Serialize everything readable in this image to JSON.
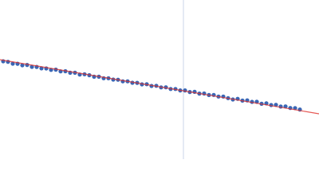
{
  "chart_data": {
    "type": "scatter",
    "xlim": [
      0,
      400
    ],
    "ylim": [
      0,
      200
    ],
    "x": [
      4,
      10,
      16,
      22,
      28,
      34,
      40,
      46,
      52,
      58,
      64,
      70,
      76,
      82,
      88,
      94,
      100,
      106,
      112,
      118,
      124,
      130,
      136,
      142,
      148,
      154,
      160,
      166,
      172,
      178,
      184,
      190,
      196,
      202,
      208,
      214,
      220,
      226,
      232,
      238,
      244,
      250,
      256,
      262,
      268,
      274,
      280,
      286,
      292,
      298,
      304,
      310,
      316,
      322,
      328,
      334,
      340,
      346,
      352,
      358,
      364,
      370,
      376
    ],
    "series": [
      {
        "color": "#3a66b5",
        "values": [
          123.0,
          122.3,
          120.0,
          119.9,
          118.0,
          118.4,
          116.0,
          115.9,
          114.1,
          114.0,
          112.2,
          112.5,
          110.3,
          110.5,
          108.6,
          108.6,
          106.3,
          106.7,
          105.5,
          103.6,
          103.6,
          101.7,
          101.7,
          100.0,
          99.8,
          97.8,
          97.8,
          96.0,
          95.9,
          94.0,
          94.2,
          92.0,
          92.2,
          90.2,
          90.3,
          88.2,
          88.2,
          86.4,
          86.4,
          84.4,
          84.6,
          82.4,
          82.5,
          80.6,
          80.7,
          78.7,
          78.7,
          76.7,
          75.0,
          75.8,
          73.6,
          73.9,
          72.0,
          72.1,
          69.6,
          70.1,
          68.0,
          68.3,
          66.1,
          66.3,
          64.3,
          64.2,
          62.4
        ]
      },
      {
        "color": "#e0302a",
        "x": [
          0,
          400
        ],
        "values": [
          125,
          57
        ]
      }
    ],
    "vline_x": 230,
    "vline_color": "#cbd6ea"
  }
}
